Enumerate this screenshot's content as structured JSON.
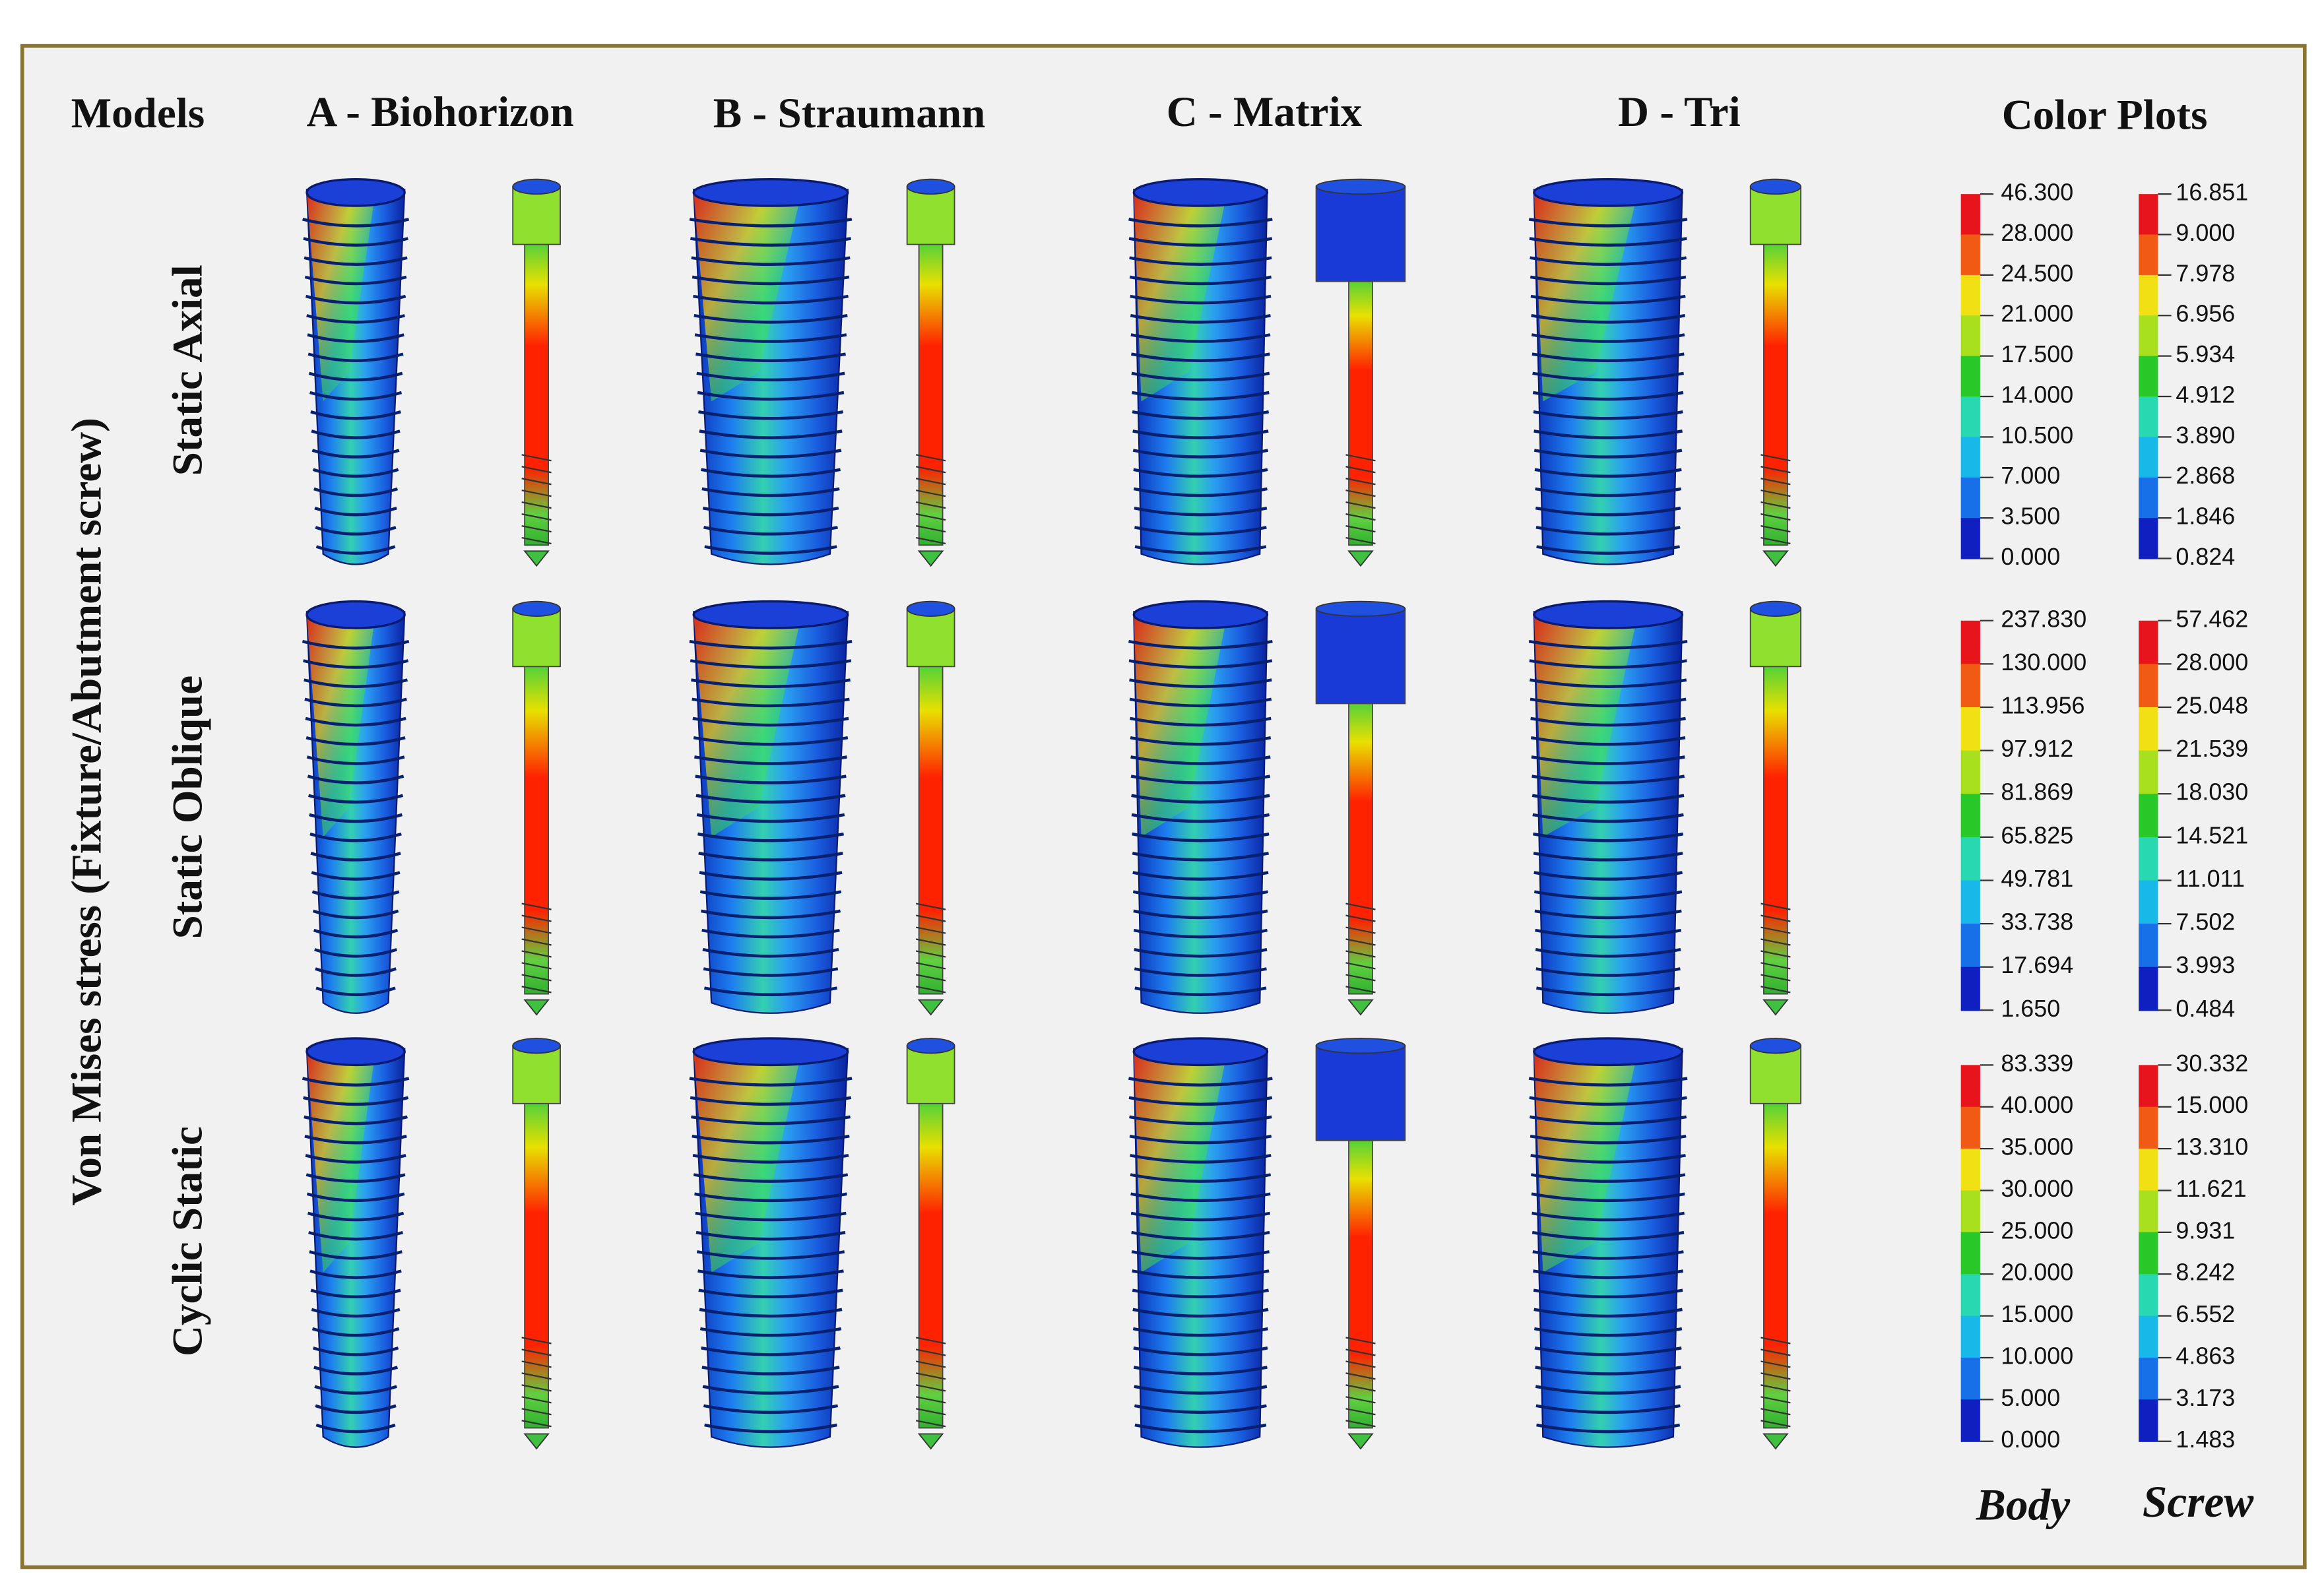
{
  "header": {
    "models_label": "Models",
    "columns": [
      "A - Biohorizon",
      "B - Straumann",
      "C - Matrix",
      "D - Tri"
    ],
    "color_plots_label": "Color Plots"
  },
  "y_axis_label": "Von Mises stress (Fixture/Abutment screw)",
  "rows": [
    "Static Axial",
    "Static Oblique",
    "Cyclic Static"
  ],
  "legends": [
    {
      "body": [
        "46.300",
        "28.000",
        "24.500",
        "21.000",
        "17.500",
        "14.000",
        "10.500",
        "7.000",
        "3.500",
        "0.000"
      ],
      "screw": [
        "16.851",
        "9.000",
        "7.978",
        "6.956",
        "5.934",
        "4.912",
        "3.890",
        "2.868",
        "1.846",
        "0.824"
      ]
    },
    {
      "body": [
        "237.830",
        "130.000",
        "113.956",
        "97.912",
        "81.869",
        "65.825",
        "49.781",
        "33.738",
        "17.694",
        "1.650"
      ],
      "screw": [
        "57.462",
        "28.000",
        "25.048",
        "21.539",
        "18.030",
        "14.521",
        "11.011",
        "7.502",
        "3.993",
        "0.484"
      ]
    },
    {
      "body": [
        "83.339",
        "40.000",
        "35.000",
        "30.000",
        "25.000",
        "20.000",
        "15.000",
        "10.000",
        "5.000",
        "0.000"
      ],
      "screw": [
        "30.332",
        "15.000",
        "13.310",
        "11.621",
        "9.931",
        "8.242",
        "6.552",
        "4.863",
        "3.173",
        "1.483"
      ]
    }
  ],
  "legend_captions": {
    "body": "Body",
    "screw": "Screw"
  }
}
